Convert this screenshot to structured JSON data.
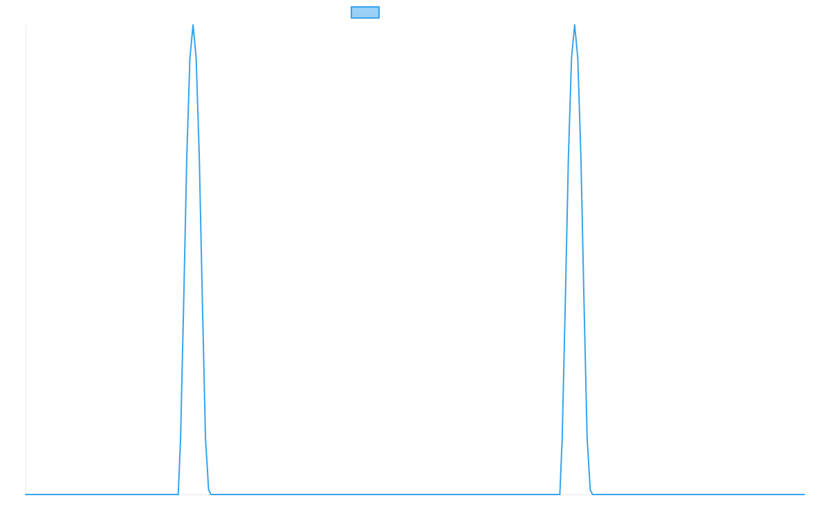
{
  "chart_data": {
    "type": "line",
    "title": "",
    "xlabel": "",
    "ylabel": "",
    "xlim": [
      0,
      1
    ],
    "ylim": [
      0,
      1
    ],
    "grid": false,
    "legend": "top-center",
    "series": [
      {
        "line_color": "#36a2eb",
        "fill_color": "#9ad0f5",
        "x": [
          0.0,
          0.196,
          0.199,
          0.203,
          0.207,
          0.211,
          0.215,
          0.219,
          0.223,
          0.227,
          0.231,
          0.235,
          0.238,
          0.686,
          0.689,
          0.693,
          0.697,
          0.701,
          0.705,
          0.709,
          0.713,
          0.717,
          0.721,
          0.725,
          0.728,
          1.0
        ],
        "y": [
          0.0,
          0.0,
          0.12,
          0.41,
          0.72,
          0.93,
          1.0,
          0.93,
          0.72,
          0.41,
          0.12,
          0.01,
          0.0,
          0.0,
          0.12,
          0.41,
          0.72,
          0.93,
          1.0,
          0.93,
          0.72,
          0.41,
          0.12,
          0.01,
          0.0,
          0.0
        ]
      }
    ]
  }
}
